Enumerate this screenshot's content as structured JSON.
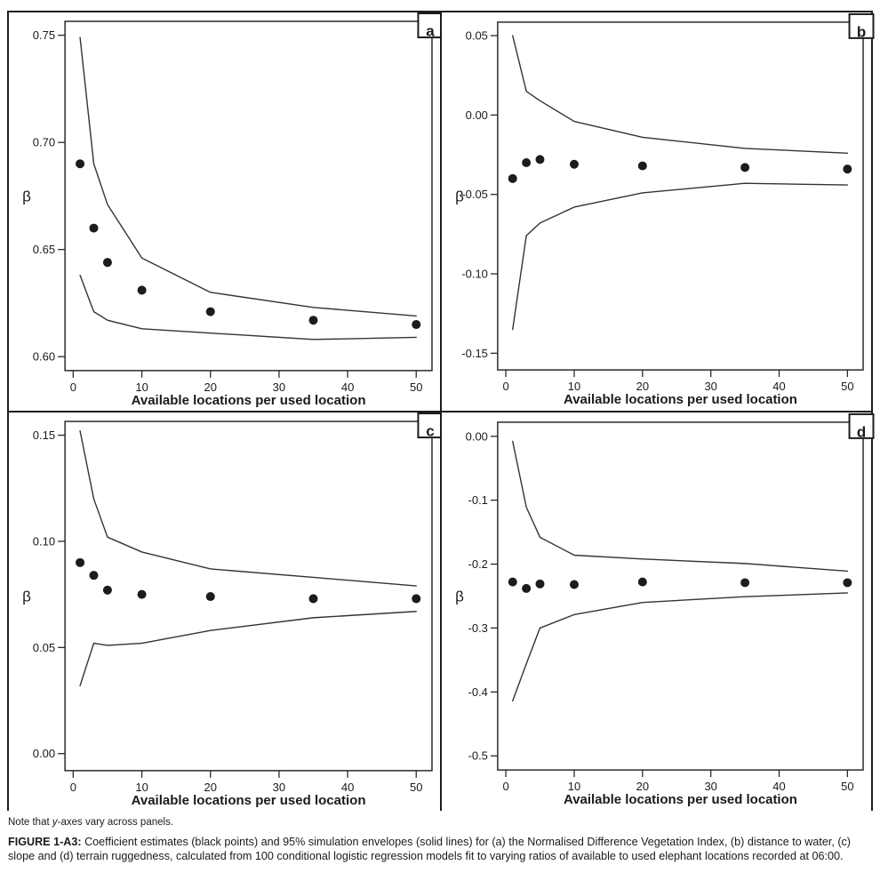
{
  "note": {
    "prefix": "Note that ",
    "italic": "y",
    "suffix": "-axes vary across panels."
  },
  "caption": {
    "label": "FIGURE 1-A3:",
    "text": "Coefficient estimates (black points) and 95% simulation envelopes (solid lines) for (a) the Normalised Difference Vegetation Index, (b) distance to water, (c) slope and (d) terrain ruggedness, calculated from 100 conditional logistic regression models fit to varying ratios of available to used elephant locations recorded at 06:00."
  },
  "chart_data": [
    {
      "type": "scatter",
      "panel": "a",
      "variable": "Normalised Difference Vegetation Index",
      "xlabel": "Available locations per used location",
      "ylabel": "β",
      "x": [
        1,
        3,
        5,
        10,
        20,
        35,
        50
      ],
      "points": [
        0.69,
        0.66,
        0.644,
        0.631,
        0.621,
        0.617,
        0.615
      ],
      "upper_envelope": [
        0.749,
        0.69,
        0.671,
        0.646,
        0.63,
        0.623,
        0.619
      ],
      "lower_envelope": [
        0.638,
        0.621,
        0.617,
        0.613,
        0.611,
        0.608,
        0.609
      ],
      "xticks": [
        {
          "value": 0,
          "label": "0"
        },
        {
          "value": 10,
          "label": "10"
        },
        {
          "value": 20,
          "label": "20"
        },
        {
          "value": 30,
          "label": "30"
        },
        {
          "value": 40,
          "label": "40"
        },
        {
          "value": 50,
          "label": "50"
        }
      ],
      "yticks": [
        {
          "value": 0.6,
          "label": "0.60"
        },
        {
          "value": 0.65,
          "label": "0.65"
        },
        {
          "value": 0.7,
          "label": "0.70"
        },
        {
          "value": 0.75,
          "label": "0.75"
        }
      ],
      "xlim": [
        -1.2,
        52.3
      ],
      "ylim": [
        0.5935,
        0.7565
      ],
      "grid": false,
      "legend": "none"
    },
    {
      "type": "scatter",
      "panel": "b",
      "variable": "distance to water",
      "xlabel": "Available locations per used location",
      "ylabel": "β",
      "x": [
        1,
        3,
        5,
        10,
        20,
        35,
        50
      ],
      "points": [
        -0.04,
        -0.03,
        -0.028,
        -0.031,
        -0.032,
        -0.033,
        -0.034
      ],
      "upper_envelope": [
        0.05,
        0.015,
        0.009,
        -0.004,
        -0.014,
        -0.021,
        -0.024
      ],
      "lower_envelope": [
        -0.135,
        -0.076,
        -0.068,
        -0.058,
        -0.049,
        -0.043,
        -0.044
      ],
      "xticks": [
        {
          "value": 0,
          "label": "0"
        },
        {
          "value": 10,
          "label": "10"
        },
        {
          "value": 20,
          "label": "20"
        },
        {
          "value": 30,
          "label": "30"
        },
        {
          "value": 40,
          "label": "40"
        },
        {
          "value": 50,
          "label": "50"
        }
      ],
      "yticks": [
        {
          "value": 0.05,
          "label": "0.05"
        },
        {
          "value": 0.0,
          "label": "0.00"
        },
        {
          "value": -0.05,
          "label": "-0.05"
        },
        {
          "value": -0.1,
          "label": "-0.10"
        },
        {
          "value": -0.15,
          "label": "-0.15"
        }
      ],
      "xlim": [
        -1.2,
        52.3
      ],
      "ylim": [
        -0.1605,
        0.0585
      ],
      "grid": false,
      "legend": "none"
    },
    {
      "type": "scatter",
      "panel": "c",
      "variable": "slope",
      "xlabel": "Available locations per used location",
      "ylabel": "β",
      "x": [
        1,
        3,
        5,
        10,
        20,
        35,
        50
      ],
      "points": [
        0.09,
        0.084,
        0.077,
        0.075,
        0.074,
        0.073,
        0.073
      ],
      "upper_envelope": [
        0.152,
        0.12,
        0.102,
        0.095,
        0.087,
        0.083,
        0.079
      ],
      "lower_envelope": [
        0.032,
        0.052,
        0.051,
        0.052,
        0.058,
        0.064,
        0.067
      ],
      "xticks": [
        {
          "value": 0,
          "label": "0"
        },
        {
          "value": 10,
          "label": "10"
        },
        {
          "value": 20,
          "label": "20"
        },
        {
          "value": 30,
          "label": "30"
        },
        {
          "value": 40,
          "label": "40"
        },
        {
          "value": 50,
          "label": "50"
        }
      ],
      "yticks": [
        {
          "value": 0.0,
          "label": "0.00"
        },
        {
          "value": 0.05,
          "label": "0.05"
        },
        {
          "value": 0.1,
          "label": "0.10"
        },
        {
          "value": 0.15,
          "label": "0.15"
        }
      ],
      "xlim": [
        -1.2,
        52.3
      ],
      "ylim": [
        -0.008,
        0.1565
      ],
      "grid": false,
      "legend": "none"
    },
    {
      "type": "scatter",
      "panel": "d",
      "variable": "terrain ruggedness",
      "xlabel": "Available locations per used location",
      "ylabel": "β",
      "x": [
        1,
        3,
        5,
        10,
        20,
        35,
        50
      ],
      "points": [
        -0.228,
        -0.238,
        -0.231,
        -0.232,
        -0.228,
        -0.229,
        -0.229
      ],
      "upper_envelope": [
        -0.008,
        -0.111,
        -0.158,
        -0.186,
        -0.192,
        -0.199,
        -0.211
      ],
      "lower_envelope": [
        -0.414,
        -0.356,
        -0.3,
        -0.279,
        -0.26,
        -0.251,
        -0.245
      ],
      "xticks": [
        {
          "value": 0,
          "label": "0"
        },
        {
          "value": 10,
          "label": "10"
        },
        {
          "value": 20,
          "label": "20"
        },
        {
          "value": 30,
          "label": "30"
        },
        {
          "value": 40,
          "label": "40"
        },
        {
          "value": 50,
          "label": "50"
        }
      ],
      "yticks": [
        {
          "value": 0.0,
          "label": "0.00"
        },
        {
          "value": -0.1,
          "label": "-0.1"
        },
        {
          "value": -0.2,
          "label": "-0.2"
        },
        {
          "value": -0.3,
          "label": "-0.3"
        },
        {
          "value": -0.4,
          "label": "-0.4"
        },
        {
          "value": -0.5,
          "label": "-0.5"
        }
      ],
      "xlim": [
        -1.2,
        52.3
      ],
      "ylim": [
        -0.522,
        0.022
      ],
      "grid": false,
      "legend": "none"
    }
  ]
}
